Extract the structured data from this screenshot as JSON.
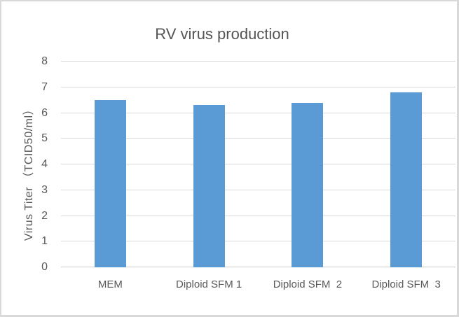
{
  "chart_data": {
    "type": "bar",
    "title": "RV virus production",
    "categories": [
      "MEM",
      "Diploid SFM 1",
      "Diploid SFM  2",
      "Diploid SFM  3"
    ],
    "values": [
      6.5,
      6.3,
      6.4,
      6.8
    ],
    "xlabel": "",
    "ylabel": "Virus Titer （TCID50/ml）",
    "ylim": [
      0,
      8
    ],
    "yticks": [
      0,
      1,
      2,
      3,
      4,
      5,
      6,
      7,
      8
    ],
    "grid": true,
    "legend": false,
    "colors": {
      "bar": "#5B9BD5",
      "gridline": "#D9D9D9",
      "baseline": "#CCCCCC",
      "text": "#595959",
      "title_text": "#555555",
      "background": "#FFFFFF",
      "frame_border": "#D9D9D9"
    }
  }
}
